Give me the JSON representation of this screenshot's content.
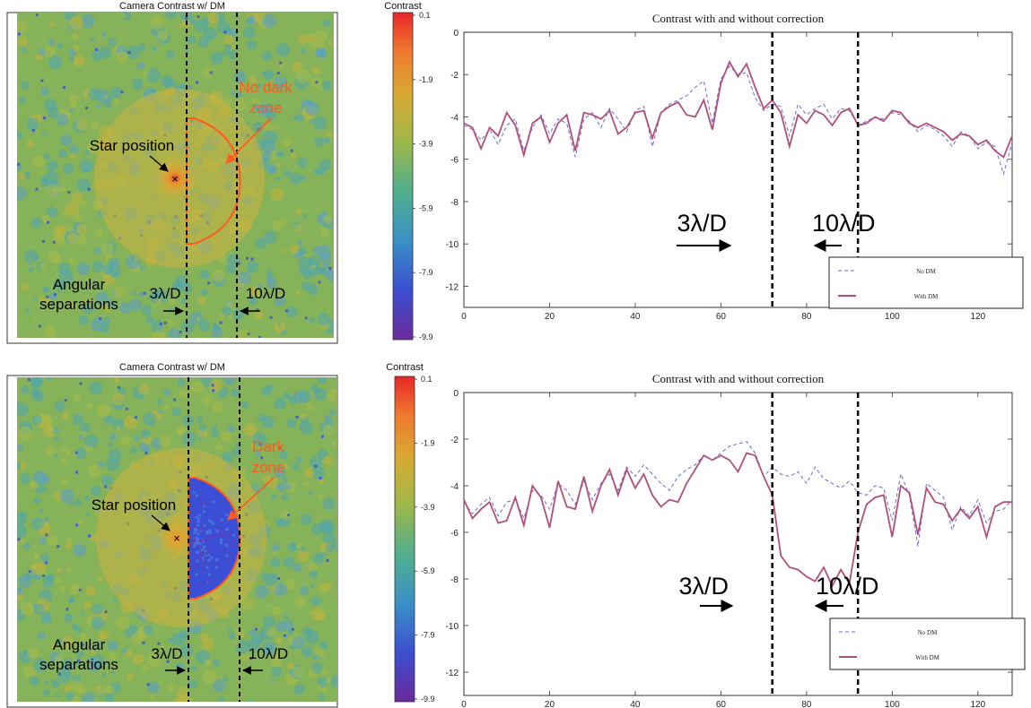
{
  "colors": {
    "scheme": "turbo-like",
    "no_dm": "#6a6ad6",
    "with_dm": "#b0507a",
    "annotation": "#ff5a1f",
    "dark_zone_fill": "#3a4fd6"
  },
  "panels": [
    {
      "camera": {
        "title": "Camera Contrast w/ DM",
        "star_label": "Star position",
        "zone_label": [
          "No dark",
          "zone"
        ],
        "angular_label": [
          "Angular",
          "separations"
        ],
        "label_3": "3λ/D",
        "label_10": "10λ/D",
        "dark_zone": false
      },
      "colorbar": {
        "title": "Contrast",
        "ticks": [
          "0.1",
          "-1.9",
          "-3.9",
          "-5.9",
          "-7.9",
          "-9.9"
        ]
      },
      "chart": {
        "title": "Contrast with and without correction",
        "label_3": "3λ/D",
        "label_10": "10λ/D"
      }
    },
    {
      "camera": {
        "title": "Camera Contrast w/ DM",
        "star_label": "Star position",
        "zone_label": [
          "Dark",
          "zone"
        ],
        "angular_label": [
          "Angular",
          "separations"
        ],
        "label_3": "3λ/D",
        "label_10": "10λ/D",
        "dark_zone": true
      },
      "colorbar": {
        "title": "Contrast",
        "ticks": [
          "0.1",
          "-1.9",
          "-3.9",
          "-5.9",
          "-7.9",
          "-9.9"
        ]
      },
      "chart": {
        "title": "Contrast with and without correction",
        "label_3": "3λ/D",
        "label_10": "10λ/D"
      }
    }
  ],
  "chart_data": [
    {
      "type": "line",
      "title": "Contrast with and without correction",
      "xlabel": "",
      "ylabel": "",
      "xlim": [
        0,
        128
      ],
      "ylim": [
        -13,
        0
      ],
      "xticks": [
        0,
        20,
        40,
        60,
        80,
        100,
        120
      ],
      "yticks": [
        0,
        -2,
        -4,
        -6,
        -8,
        -10,
        -12
      ],
      "vlines": [
        72,
        92
      ],
      "legend": "bottom-right",
      "series": [
        {
          "name": "No DM",
          "style": "dashed",
          "x": [
            0,
            2,
            4,
            6,
            8,
            10,
            12,
            14,
            16,
            18,
            20,
            22,
            24,
            26,
            28,
            30,
            32,
            34,
            36,
            38,
            40,
            42,
            44,
            46,
            48,
            50,
            52,
            54,
            56,
            58,
            60,
            62,
            64,
            66,
            68,
            70,
            72,
            74,
            76,
            78,
            80,
            82,
            84,
            86,
            88,
            90,
            92,
            94,
            96,
            98,
            100,
            102,
            104,
            106,
            108,
            110,
            112,
            114,
            116,
            118,
            120,
            122,
            124,
            126,
            128
          ],
          "y": [
            -4.4,
            -4.6,
            -5.1,
            -4.6,
            -5.3,
            -4.4,
            -4.1,
            -5.6,
            -4.5,
            -3.9,
            -4.8,
            -4.1,
            -4.3,
            -5.9,
            -4.1,
            -3.8,
            -4.5,
            -3.6,
            -4.1,
            -4.7,
            -3.7,
            -3.5,
            -5.4,
            -3.8,
            -3.4,
            -3.2,
            -3.0,
            -2.6,
            -2.3,
            -4.3,
            -2.2,
            -1.6,
            -2.0,
            -1.9,
            -3.1,
            -3.7,
            -3.4,
            -3.5,
            -4.9,
            -3.4,
            -3.9,
            -3.6,
            -3.4,
            -4.1,
            -3.6,
            -3.7,
            -4.4,
            -4.2,
            -4.0,
            -4.1,
            -3.8,
            -3.9,
            -4.2,
            -4.7,
            -4.4,
            -4.6,
            -4.9,
            -5.4,
            -4.7,
            -4.9,
            -5.5,
            -5.2,
            -5.4,
            -6.7,
            -5.2
          ]
        },
        {
          "name": "With DM",
          "style": "solid",
          "x": [
            0,
            2,
            4,
            6,
            8,
            10,
            12,
            14,
            16,
            18,
            20,
            22,
            24,
            26,
            28,
            30,
            32,
            34,
            36,
            38,
            40,
            42,
            44,
            46,
            48,
            50,
            52,
            54,
            56,
            58,
            60,
            62,
            64,
            66,
            68,
            70,
            72,
            74,
            76,
            78,
            80,
            82,
            84,
            86,
            88,
            90,
            92,
            94,
            96,
            98,
            100,
            102,
            104,
            106,
            108,
            110,
            112,
            114,
            116,
            118,
            120,
            122,
            124,
            126,
            128
          ],
          "y": [
            -4.3,
            -4.5,
            -5.5,
            -4.5,
            -4.9,
            -3.8,
            -4.4,
            -5.8,
            -4.3,
            -4.0,
            -5.2,
            -4.3,
            -3.9,
            -5.6,
            -3.8,
            -3.9,
            -4.1,
            -3.7,
            -4.8,
            -4.5,
            -3.8,
            -3.7,
            -5.0,
            -3.8,
            -3.5,
            -3.3,
            -3.9,
            -4.0,
            -3.2,
            -4.6,
            -2.4,
            -1.4,
            -2.1,
            -1.5,
            -2.6,
            -3.6,
            -3.2,
            -3.8,
            -5.4,
            -3.9,
            -4.3,
            -3.7,
            -3.9,
            -4.4,
            -3.8,
            -3.6,
            -4.4,
            -4.3,
            -4.0,
            -4.2,
            -3.7,
            -3.8,
            -4.3,
            -4.5,
            -4.3,
            -4.5,
            -4.7,
            -5.1,
            -4.8,
            -4.9,
            -5.3,
            -5.1,
            -5.6,
            -5.9,
            -4.9
          ]
        }
      ]
    },
    {
      "type": "line",
      "title": "Contrast with and without correction",
      "xlabel": "",
      "ylabel": "",
      "xlim": [
        0,
        128
      ],
      "ylim": [
        -13,
        0
      ],
      "xticks": [
        0,
        20,
        40,
        60,
        80,
        100,
        120
      ],
      "yticks": [
        0,
        -2,
        -4,
        -6,
        -8,
        -10,
        -12
      ],
      "vlines": [
        72,
        92
      ],
      "legend": "bottom-right",
      "series": [
        {
          "name": "No DM",
          "style": "dashed",
          "x": [
            0,
            2,
            4,
            6,
            8,
            10,
            12,
            14,
            16,
            18,
            20,
            22,
            24,
            26,
            28,
            30,
            32,
            34,
            36,
            38,
            40,
            42,
            44,
            46,
            48,
            50,
            52,
            54,
            56,
            58,
            60,
            62,
            64,
            66,
            68,
            70,
            72,
            74,
            76,
            78,
            80,
            82,
            84,
            86,
            88,
            90,
            92,
            94,
            96,
            98,
            100,
            102,
            104,
            106,
            108,
            110,
            112,
            114,
            116,
            118,
            120,
            122,
            124,
            126,
            128
          ],
          "y": [
            -4.7,
            -5.2,
            -4.8,
            -4.5,
            -5.3,
            -4.7,
            -4.6,
            -5.4,
            -4.2,
            -4.4,
            -5.0,
            -3.9,
            -4.2,
            -4.8,
            -3.8,
            -4.6,
            -3.9,
            -3.5,
            -4.2,
            -3.2,
            -3.6,
            -3.1,
            -3.5,
            -3.9,
            -4.2,
            -3.6,
            -3.3,
            -3.1,
            -2.7,
            -2.9,
            -2.6,
            -2.3,
            -2.2,
            -2.1,
            -2.6,
            -3.6,
            -3.2,
            -3.5,
            -3.6,
            -3.4,
            -3.9,
            -3.2,
            -3.7,
            -3.9,
            -4.1,
            -3.8,
            -4.3,
            -4.4,
            -4.0,
            -4.1,
            -5.5,
            -3.5,
            -4.4,
            -6.6,
            -3.9,
            -4.2,
            -4.5,
            -5.9,
            -4.9,
            -5.3,
            -4.6,
            -5.6,
            -5.1,
            -5.0,
            -4.6
          ]
        },
        {
          "name": "With DM",
          "style": "solid",
          "x": [
            0,
            2,
            4,
            6,
            8,
            10,
            12,
            14,
            16,
            18,
            20,
            22,
            24,
            26,
            28,
            30,
            32,
            34,
            36,
            38,
            40,
            42,
            44,
            46,
            48,
            50,
            52,
            54,
            56,
            58,
            60,
            62,
            64,
            66,
            68,
            70,
            72,
            74,
            76,
            78,
            80,
            82,
            84,
            86,
            88,
            90,
            92,
            94,
            96,
            98,
            100,
            102,
            104,
            106,
            108,
            110,
            112,
            114,
            116,
            118,
            120,
            122,
            124,
            126,
            128
          ],
          "y": [
            -4.6,
            -5.4,
            -5.0,
            -4.7,
            -5.6,
            -5.5,
            -4.5,
            -5.7,
            -4.0,
            -4.5,
            -5.8,
            -3.8,
            -4.9,
            -5.0,
            -3.6,
            -5.1,
            -4.0,
            -3.3,
            -4.4,
            -3.3,
            -4.1,
            -3.5,
            -4.4,
            -4.9,
            -4.6,
            -4.7,
            -3.9,
            -3.3,
            -2.7,
            -2.9,
            -2.7,
            -2.9,
            -3.4,
            -2.6,
            -2.7,
            -3.6,
            -4.4,
            -7.0,
            -7.5,
            -7.6,
            -7.9,
            -8.1,
            -7.5,
            -8.3,
            -7.6,
            -8.2,
            -6.0,
            -4.8,
            -4.5,
            -4.4,
            -6.2,
            -4.0,
            -4.3,
            -6.1,
            -4.1,
            -4.7,
            -4.8,
            -5.5,
            -5.0,
            -5.4,
            -4.9,
            -6.2,
            -4.9,
            -4.7,
            -4.7
          ]
        }
      ]
    }
  ]
}
